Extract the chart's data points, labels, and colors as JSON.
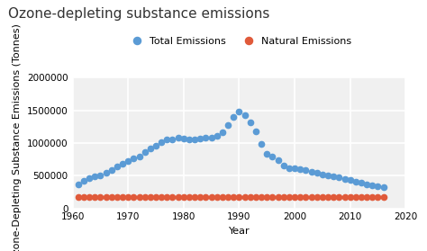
{
  "title": "Ozone-depleting substance emissions",
  "xlabel": "Year",
  "ylabel": "Ozone-Depleting Substance Emissions (Tonnes)",
  "xlim": [
    1960,
    2020
  ],
  "ylim": [
    0,
    2000000
  ],
  "yticks": [
    0,
    500000,
    1000000,
    1500000,
    2000000
  ],
  "xticks": [
    1960,
    1970,
    1980,
    1990,
    2000,
    2010,
    2020
  ],
  "bg_color": "#f0f0f0",
  "grid_color": "#ffffff",
  "total_color": "#5b9bd5",
  "natural_color": "#e05a3a",
  "total_label": "Total Emissions",
  "natural_label": "Natural Emissions",
  "years": [
    1961,
    1962,
    1963,
    1964,
    1965,
    1966,
    1967,
    1968,
    1969,
    1970,
    1971,
    1972,
    1973,
    1974,
    1975,
    1976,
    1977,
    1978,
    1979,
    1980,
    1981,
    1982,
    1983,
    1984,
    1985,
    1986,
    1987,
    1988,
    1989,
    1990,
    1991,
    1992,
    1993,
    1994,
    1995,
    1996,
    1997,
    1998,
    1999,
    2000,
    2001,
    2002,
    2003,
    2004,
    2005,
    2006,
    2007,
    2008,
    2009,
    2010,
    2011,
    2012,
    2013,
    2014,
    2015,
    2016
  ],
  "total_emissions": [
    370000,
    420000,
    460000,
    490000,
    510000,
    540000,
    590000,
    640000,
    680000,
    720000,
    760000,
    800000,
    860000,
    920000,
    960000,
    1010000,
    1050000,
    1060000,
    1080000,
    1070000,
    1050000,
    1060000,
    1070000,
    1080000,
    1090000,
    1110000,
    1170000,
    1280000,
    1400000,
    1480000,
    1430000,
    1320000,
    1180000,
    980000,
    830000,
    800000,
    740000,
    660000,
    620000,
    620000,
    600000,
    580000,
    560000,
    540000,
    520000,
    500000,
    490000,
    470000,
    450000,
    430000,
    410000,
    390000,
    370000,
    355000,
    340000,
    325000
  ],
  "natural_emissions": [
    170000,
    170000,
    170000,
    170000,
    170000,
    170000,
    170000,
    170000,
    170000,
    170000,
    170000,
    170000,
    170000,
    170000,
    170000,
    170000,
    170000,
    170000,
    170000,
    170000,
    170000,
    170000,
    170000,
    170000,
    170000,
    170000,
    170000,
    170000,
    170000,
    170000,
    170000,
    170000,
    170000,
    170000,
    170000,
    170000,
    170000,
    170000,
    170000,
    170000,
    170000,
    170000,
    170000,
    170000,
    170000,
    170000,
    170000,
    170000,
    170000,
    170000,
    170000,
    170000,
    170000,
    170000,
    170000,
    170000
  ],
  "marker_size": 4.5,
  "title_fontsize": 11,
  "axis_label_fontsize": 8,
  "tick_fontsize": 7.5,
  "legend_fontsize": 8
}
